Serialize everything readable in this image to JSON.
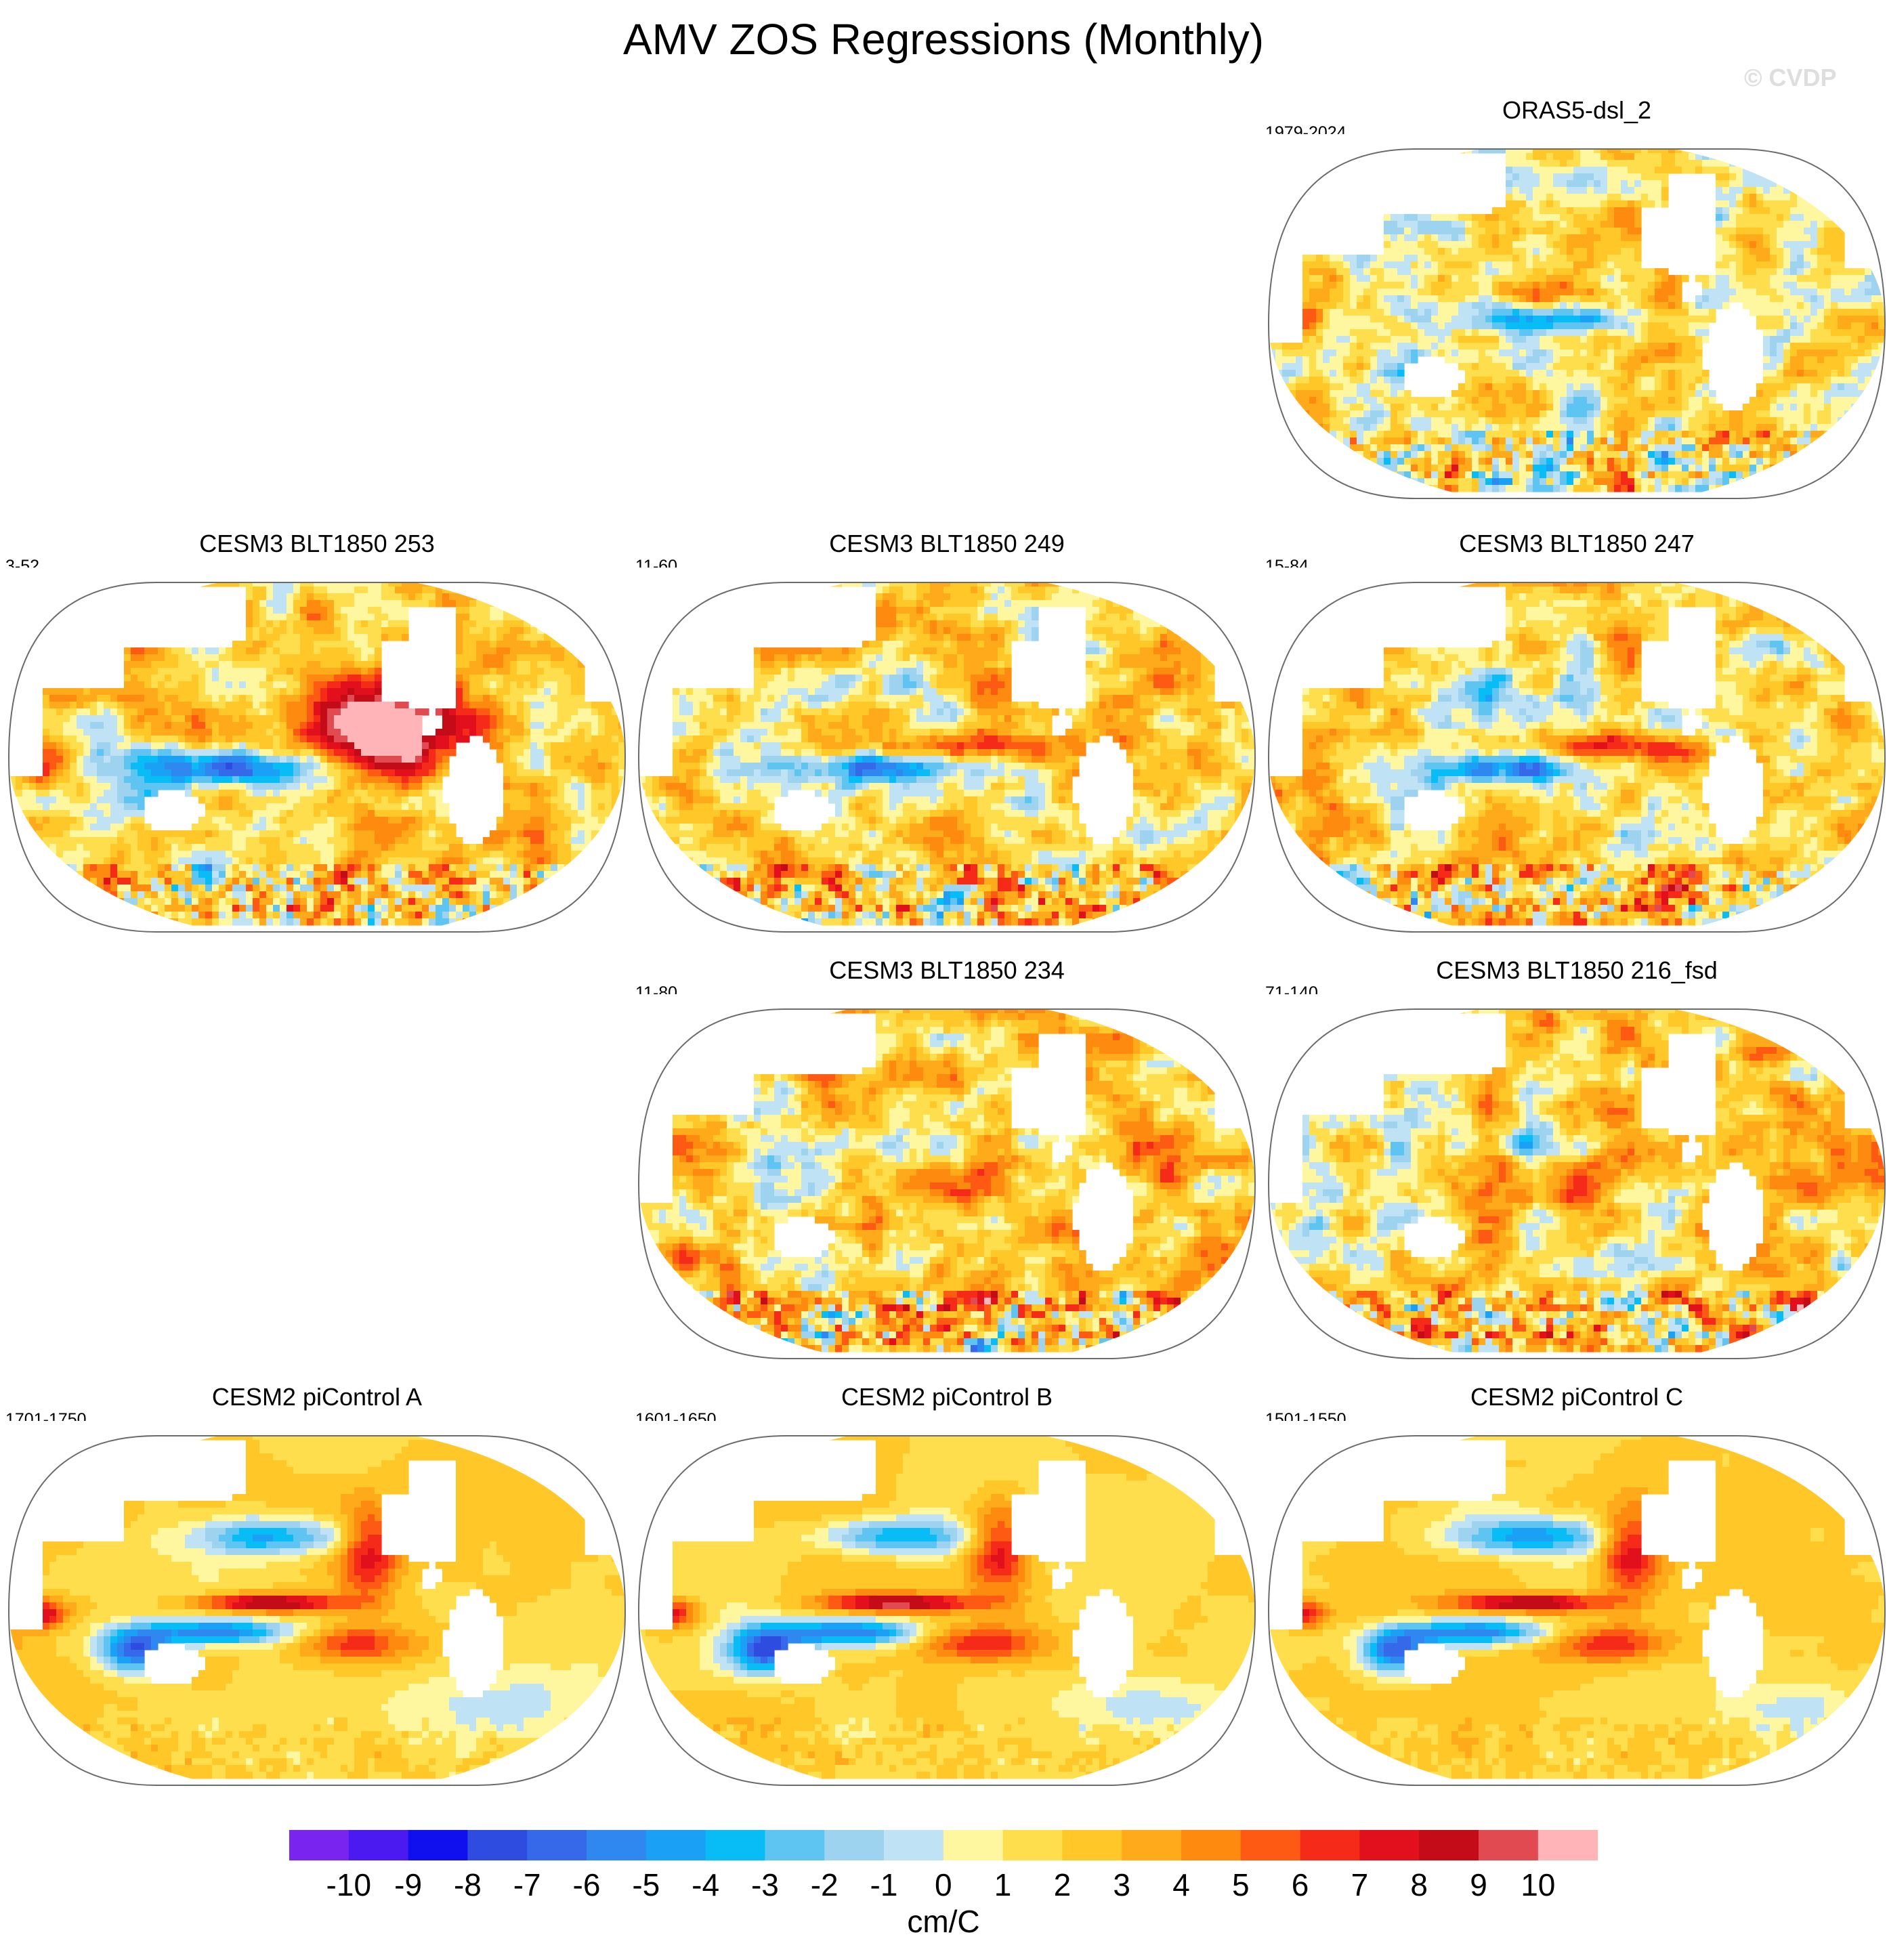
{
  "title": "AMV ZOS Regressions (Monthly)",
  "watermark": "© CVDP",
  "chart_data": {
    "type": "heatmap",
    "description_units": "cm/C",
    "colorbar": {
      "label": "cm/C",
      "ticks": [
        "-10",
        "-9",
        "-8",
        "-7",
        "-6",
        "-5",
        "-4",
        "-3",
        "-2",
        "-1",
        "0",
        "1",
        "2",
        "3",
        "4",
        "5",
        "6",
        "7",
        "8",
        "9",
        "10"
      ],
      "colors": [
        "#7a24ef",
        "#4a1af0",
        "#1010ee",
        "#2e4de0",
        "#3569ea",
        "#2e88f0",
        "#1aa0f5",
        "#08bcf5",
        "#5ec4f2",
        "#9dd3ef",
        "#c0e2f5",
        "#fff7a0",
        "#ffde4d",
        "#ffc828",
        "#ffaa1a",
        "#ff8a10",
        "#ff5a14",
        "#f52a18",
        "#e2101c",
        "#c40c18",
        "#e14a50",
        "#ffb4b8"
      ]
    },
    "panels": [
      {
        "id": "oras5",
        "title": "ORAS5-dsl_2",
        "years": "1979-2024",
        "pattern": "obs"
      },
      {
        "id": "b253",
        "title": "CESM3 BLT1850 253",
        "years": "3-52",
        "pattern": "strong"
      },
      {
        "id": "b249",
        "title": "CESM3 BLT1850 249",
        "years": "11-60",
        "pattern": "mid"
      },
      {
        "id": "b247",
        "title": "CESM3 BLT1850 247",
        "years": "15-84",
        "pattern": "mid"
      },
      {
        "id": "b234",
        "title": "CESM3 BLT1850 234",
        "years": "11-80",
        "pattern": "warm"
      },
      {
        "id": "b216",
        "title": "CESM3 BLT1850 216_fsd",
        "years": "71-140",
        "pattern": "warm"
      },
      {
        "id": "pa",
        "title": "CESM2 piControl A",
        "years": "1701-1750",
        "pattern": "pi"
      },
      {
        "id": "pb",
        "title": "CESM2 piControl B",
        "years": "1601-1650",
        "pattern": "pi"
      },
      {
        "id": "pc",
        "title": "CESM2 piControl C",
        "years": "1501-1550",
        "pattern": "pi"
      }
    ]
  }
}
